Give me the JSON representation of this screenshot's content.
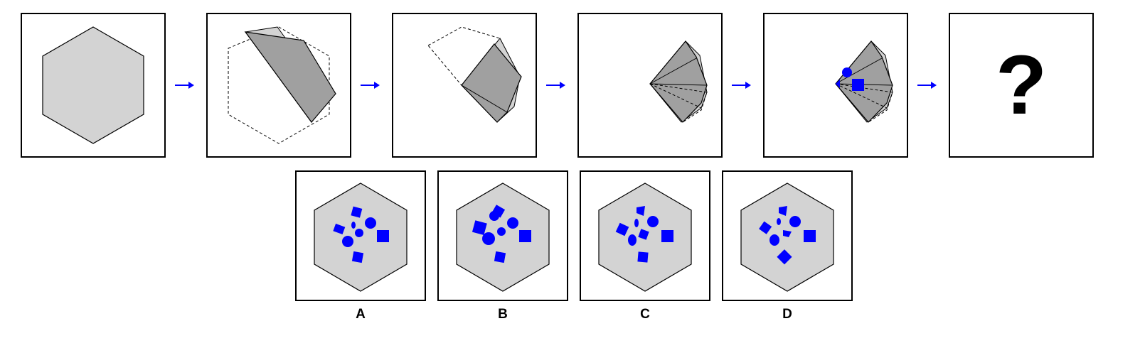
{
  "question_mark": "?",
  "options": [
    {
      "label": "A"
    },
    {
      "label": "B"
    },
    {
      "label": "C"
    },
    {
      "label": "D"
    }
  ],
  "colors": {
    "paper": "#d3d3d3",
    "paper_fold": "#a0a0a0",
    "shape": "#0000ff",
    "arrow": "#0000ff",
    "border": "#000000"
  }
}
